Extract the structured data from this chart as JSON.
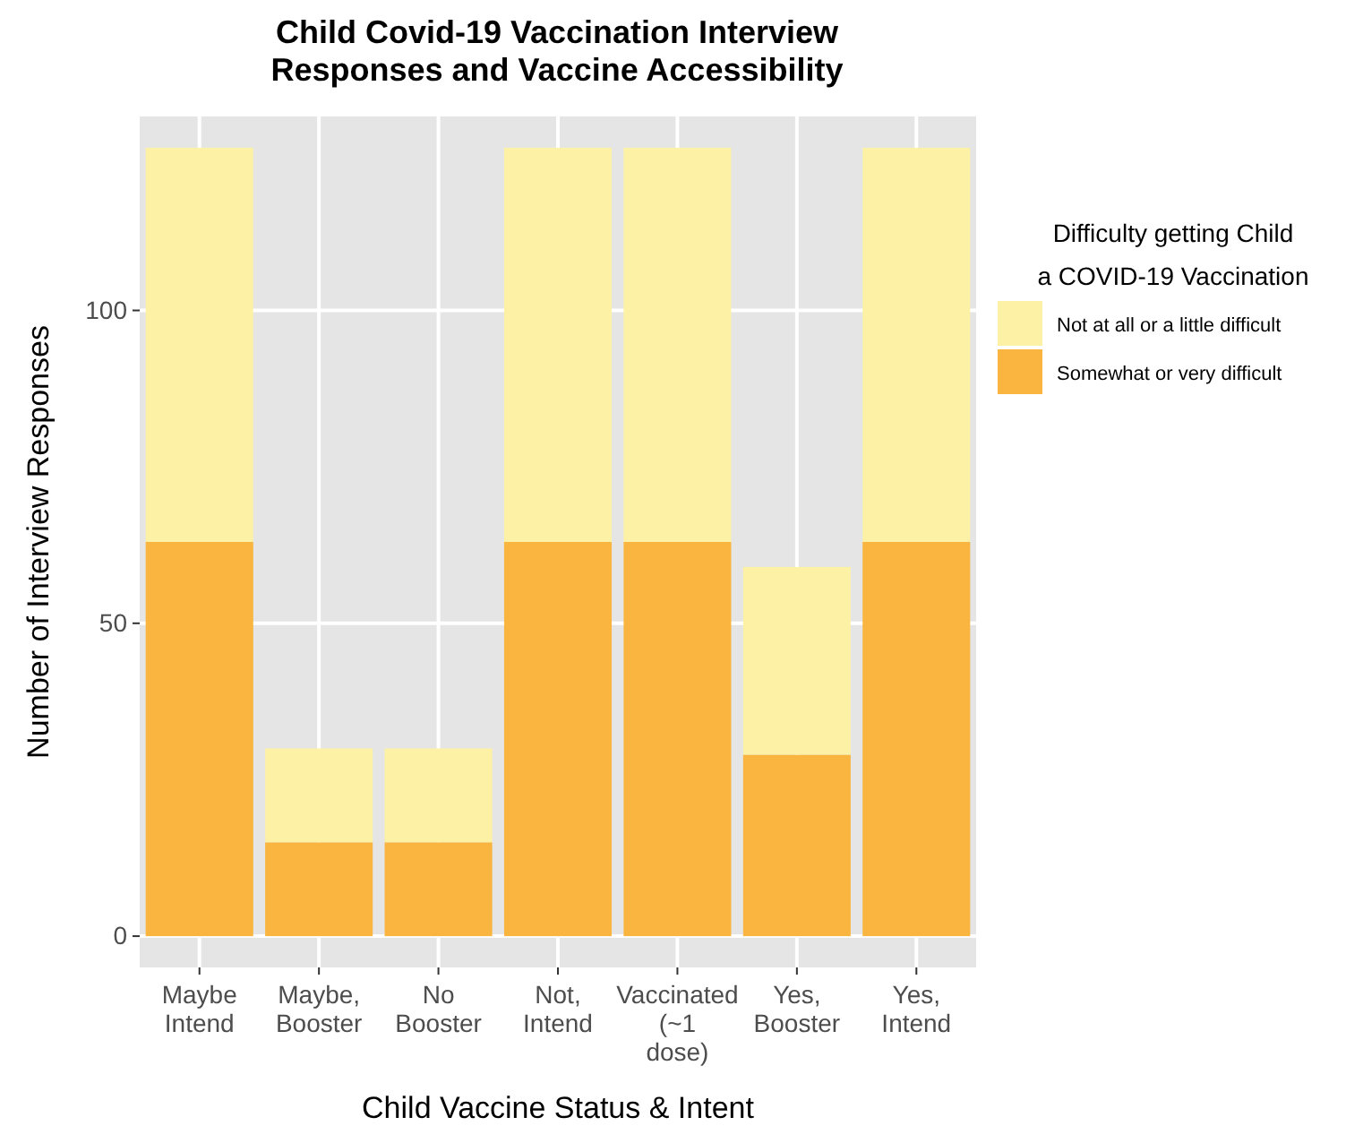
{
  "chart_data": {
    "type": "bar",
    "title": "Child Covid-19 Vaccination Interview\nResponses and Vaccine Accessibility",
    "xlabel": "Child Vaccine Status & Intent",
    "ylabel": "Number of Interview Responses",
    "legend_title": "Difficulty getting Child\na COVID-19 Vaccination",
    "categories": [
      "Maybe\nIntend",
      "Maybe,\nBooster",
      "No\nBooster",
      "Not,\nIntend",
      "Vaccinated\n(~1\ndose)",
      "Yes,\nBooster",
      "Yes,\nIntend"
    ],
    "stacked": true,
    "series": [
      {
        "name": "Somewhat or very difficult",
        "color": "#f9b53f",
        "values": [
          63,
          15,
          15,
          63,
          63,
          29,
          63
        ]
      },
      {
        "name": "Not at all or a little difficult",
        "color": "#fdf1a5",
        "values": [
          63,
          15,
          15,
          63,
          63,
          30,
          63
        ]
      }
    ],
    "ylim": [
      -5,
      131
    ],
    "yticks": [
      0,
      50,
      100
    ],
    "grid": true,
    "legend": "right"
  }
}
